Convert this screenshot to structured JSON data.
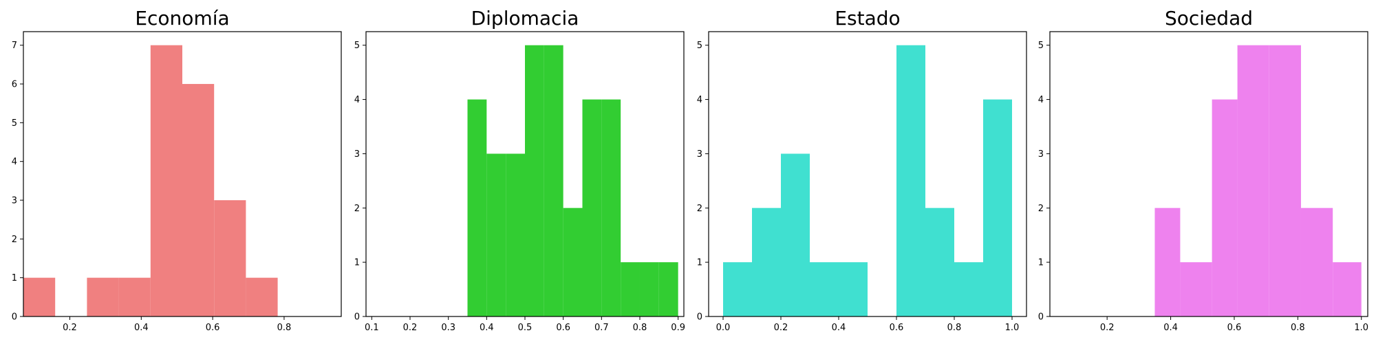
{
  "chart_data": [
    {
      "type": "bar",
      "title": "Economía",
      "color": "#f08080",
      "xlim": [
        0.07,
        0.96
      ],
      "ylim": [
        0,
        7.35
      ],
      "xticks": [
        0.2,
        0.4,
        0.6,
        0.8
      ],
      "xtick_labels": [
        "0.2",
        "0.4",
        "0.6",
        "0.8"
      ],
      "yticks": [
        0,
        1,
        2,
        3,
        4,
        5,
        6,
        7
      ],
      "ytick_labels": [
        "0",
        "1",
        "2",
        "3",
        "4",
        "5",
        "6",
        "7"
      ],
      "bins": [
        [
          0.07,
          0.159,
          1
        ],
        [
          0.159,
          0.248,
          0
        ],
        [
          0.248,
          0.337,
          1
        ],
        [
          0.337,
          0.426,
          1
        ],
        [
          0.426,
          0.515,
          7
        ],
        [
          0.515,
          0.604,
          6
        ],
        [
          0.604,
          0.693,
          3
        ],
        [
          0.693,
          0.782,
          1
        ]
      ],
      "xlabel": "",
      "ylabel": ""
    },
    {
      "type": "bar",
      "title": "Diplomacia",
      "color": "#32cd32",
      "xlim": [
        0.085,
        0.915
      ],
      "ylim": [
        0,
        5.25
      ],
      "xticks": [
        0.1,
        0.2,
        0.3,
        0.4,
        0.5,
        0.6,
        0.7,
        0.8,
        0.9
      ],
      "xtick_labels": [
        "0.1",
        "0.2",
        "0.3",
        "0.4",
        "0.5",
        "0.6",
        "0.7",
        "0.8",
        "0.9"
      ],
      "yticks": [
        0,
        1,
        2,
        3,
        4,
        5
      ],
      "ytick_labels": [
        "0",
        "1",
        "2",
        "3",
        "4",
        "5"
      ],
      "bins": [
        [
          0.35,
          0.4,
          4
        ],
        [
          0.4,
          0.45,
          3
        ],
        [
          0.45,
          0.5,
          3
        ],
        [
          0.5,
          0.55,
          5
        ],
        [
          0.55,
          0.6,
          5
        ],
        [
          0.6,
          0.65,
          2
        ],
        [
          0.65,
          0.7,
          4
        ],
        [
          0.7,
          0.75,
          4
        ],
        [
          0.75,
          0.8,
          1
        ],
        [
          0.8,
          0.85,
          1
        ],
        [
          0.85,
          0.9,
          1
        ]
      ],
      "xlabel": "",
      "ylabel": ""
    },
    {
      "type": "bar",
      "title": "Estado",
      "color": "#40e0d0",
      "xlim": [
        -0.05,
        1.05
      ],
      "ylim": [
        0,
        5.25
      ],
      "xticks": [
        0.0,
        0.2,
        0.4,
        0.6,
        0.8,
        1.0
      ],
      "xtick_labels": [
        "0.0",
        "0.2",
        "0.4",
        "0.6",
        "0.8",
        "1.0"
      ],
      "yticks": [
        0,
        1,
        2,
        3,
        4,
        5
      ],
      "ytick_labels": [
        "0",
        "1",
        "2",
        "3",
        "4",
        "5"
      ],
      "bins": [
        [
          0.0,
          0.1,
          1
        ],
        [
          0.1,
          0.2,
          2
        ],
        [
          0.2,
          0.3,
          3
        ],
        [
          0.3,
          0.4,
          1
        ],
        [
          0.4,
          0.5,
          1
        ],
        [
          0.5,
          0.6,
          0
        ],
        [
          0.6,
          0.7,
          5
        ],
        [
          0.7,
          0.8,
          2
        ],
        [
          0.8,
          0.9,
          1
        ],
        [
          0.9,
          1.0,
          4
        ]
      ],
      "xlabel": "",
      "ylabel": ""
    },
    {
      "type": "bar",
      "title": "Sociedad",
      "color": "#ee82ee",
      "xlim": [
        0.02,
        1.02
      ],
      "ylim": [
        0,
        5.25
      ],
      "xticks": [
        0.2,
        0.4,
        0.6,
        0.8,
        1.0
      ],
      "xtick_labels": [
        "0.2",
        "0.4",
        "0.6",
        "0.8",
        "1.0"
      ],
      "yticks": [
        0,
        1,
        2,
        3,
        4,
        5
      ],
      "ytick_labels": [
        "0",
        "1",
        "2",
        "3",
        "4",
        "5"
      ],
      "bins": [
        [
          0.35,
          0.43,
          2
        ],
        [
          0.43,
          0.53,
          1
        ],
        [
          0.53,
          0.61,
          4
        ],
        [
          0.61,
          0.71,
          5
        ],
        [
          0.71,
          0.81,
          5
        ],
        [
          0.81,
          0.91,
          2
        ],
        [
          0.91,
          1.0,
          1
        ]
      ],
      "xlabel": "",
      "ylabel": ""
    }
  ]
}
